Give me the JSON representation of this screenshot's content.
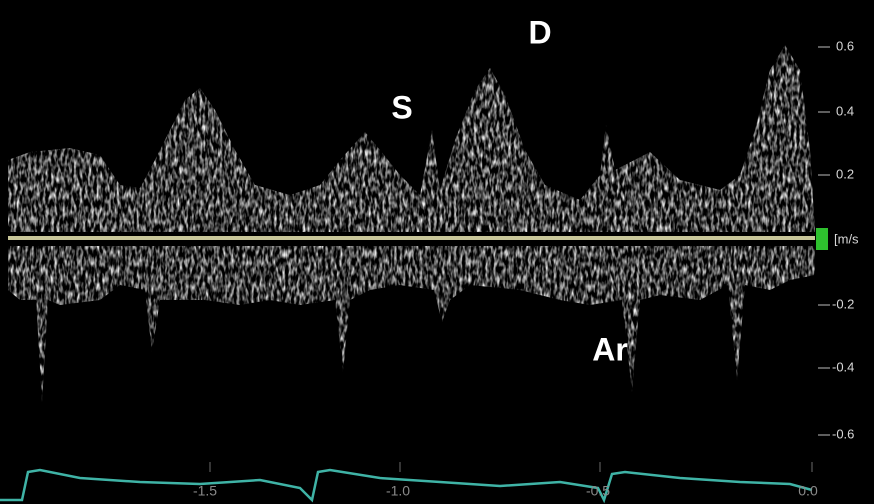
{
  "wave_labels": {
    "s": "S",
    "d": "D",
    "ar": "Ar"
  },
  "velocity_scale": {
    "ticks": [
      "0.6",
      "0.4",
      "0.2",
      "-0.2",
      "-0.4",
      "-0.6"
    ],
    "unit": "[m/s"
  },
  "time_scale": {
    "ticks": [
      "-1.5",
      "-1.0",
      "-0.5",
      "0.0"
    ]
  }
}
